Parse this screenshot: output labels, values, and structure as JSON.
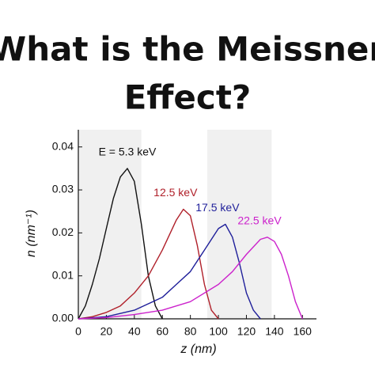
{
  "chart_data": {
    "type": "line",
    "title": [
      "What is the Meissner",
      "Effect?"
    ],
    "xlabel": "z (nm)",
    "ylabel": "n (nm⁻¹)",
    "xlim": [
      0,
      170
    ],
    "ylim": [
      0,
      0.044
    ],
    "xticks": [
      0,
      20,
      40,
      60,
      80,
      100,
      120,
      140,
      160
    ],
    "yticks": [
      {
        "value": 0,
        "label": "0.00"
      },
      0.01,
      0.02,
      0.03,
      0.04
    ],
    "shaded_ranges": [
      [
        0,
        45
      ],
      [
        92,
        138
      ]
    ],
    "series": [
      {
        "name": "E = 5.3 keV",
        "color": "#111111",
        "x": [
          0,
          5,
          10,
          15,
          20,
          25,
          30,
          35,
          40,
          45,
          50,
          55,
          60
        ],
        "values": [
          0,
          0.003,
          0.008,
          0.014,
          0.021,
          0.028,
          0.033,
          0.035,
          0.032,
          0.022,
          0.01,
          0.003,
          0
        ]
      },
      {
        "name": "12.5 keV",
        "color": "#b0202a",
        "x": [
          0,
          10,
          20,
          30,
          40,
          50,
          60,
          70,
          75,
          80,
          85,
          90,
          95,
          100
        ],
        "values": [
          0,
          0.0005,
          0.0015,
          0.003,
          0.006,
          0.01,
          0.016,
          0.023,
          0.0255,
          0.024,
          0.017,
          0.008,
          0.002,
          0
        ]
      },
      {
        "name": "17.5 keV",
        "color": "#1f1f9a",
        "x": [
          0,
          20,
          40,
          60,
          70,
          80,
          90,
          100,
          105,
          110,
          115,
          120,
          125,
          130
        ],
        "values": [
          0,
          0.0005,
          0.002,
          0.005,
          0.008,
          0.011,
          0.016,
          0.021,
          0.022,
          0.019,
          0.013,
          0.006,
          0.002,
          0
        ]
      },
      {
        "name": "22.5 keV",
        "color": "#cc22cc",
        "x": [
          0,
          20,
          40,
          60,
          80,
          100,
          110,
          120,
          130,
          135,
          140,
          145,
          150,
          155,
          160
        ],
        "values": [
          0,
          0.0003,
          0.001,
          0.002,
          0.004,
          0.008,
          0.011,
          0.015,
          0.0185,
          0.019,
          0.018,
          0.015,
          0.01,
          0.004,
          0
        ]
      }
    ]
  }
}
